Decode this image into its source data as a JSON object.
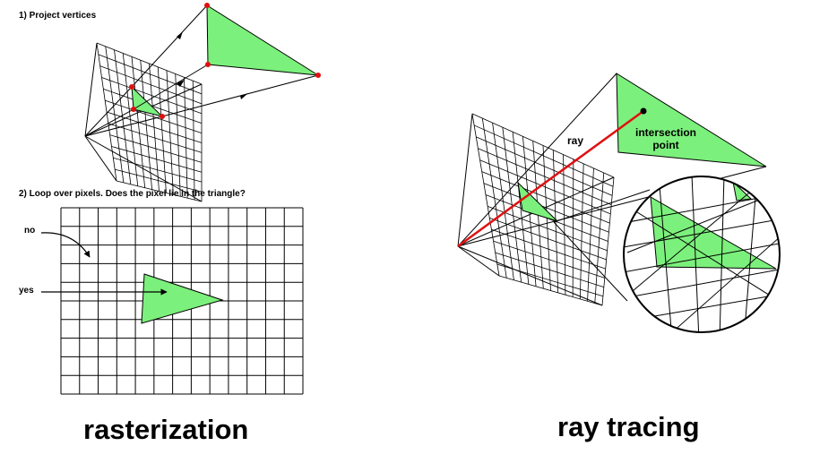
{
  "rasterization": {
    "step1": "1) Project vertices",
    "step2": "2) Loop over pixels. Does the pixel lie in the triangle?",
    "no_label": "no",
    "yes_label": "yes",
    "title": "rasterization"
  },
  "raytracing": {
    "ray_label": "ray",
    "intersection_line1": "intersection",
    "intersection_line2": "point",
    "title": "ray tracing"
  },
  "colors": {
    "triangle_fill": "#7cf07c",
    "vertex": "#e01010",
    "ray": "#e01010"
  }
}
